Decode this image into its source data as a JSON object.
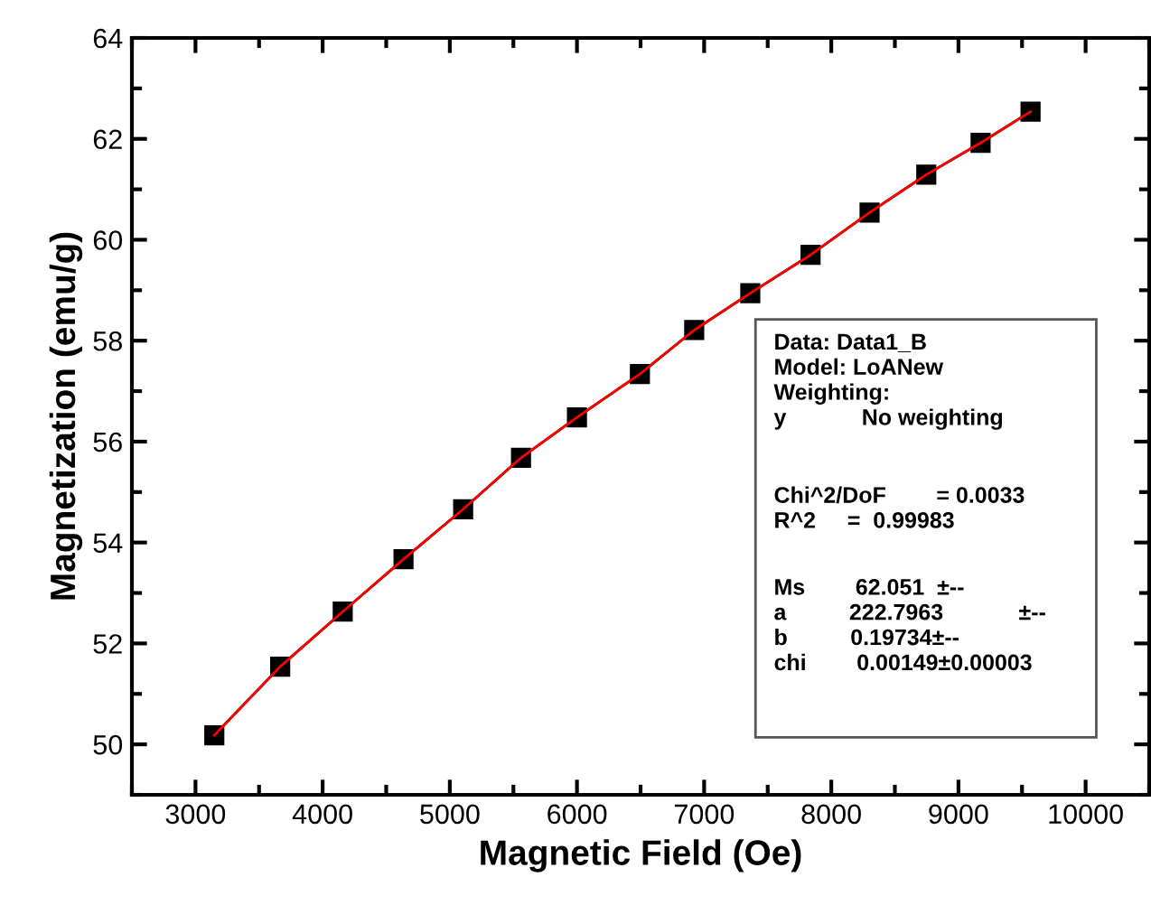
{
  "chart_data": {
    "type": "line",
    "xlabel": "Magnetic Field (Oe)",
    "ylabel": "Magnetization (emu/g)",
    "x": [
      3148,
      3666,
      4158,
      4636,
      5105,
      5560,
      6000,
      6495,
      6922,
      7363,
      7837,
      8301,
      8747,
      9174,
      9567
    ],
    "series": [
      {
        "color": "#000000",
        "marker": "square",
        "values": [
          50.18,
          51.54,
          52.63,
          53.67,
          54.66,
          55.68,
          56.48,
          57.34,
          58.21,
          58.94,
          59.7,
          60.54,
          61.29,
          61.92,
          62.54
        ]
      },
      {
        "color": "#ff0000",
        "marker": "none",
        "values": [
          50.18,
          51.54,
          52.63,
          53.67,
          54.66,
          55.68,
          56.48,
          57.34,
          58.21,
          58.94,
          59.7,
          60.54,
          61.29,
          61.92,
          62.54
        ]
      }
    ],
    "xlim": [
      2500,
      10500
    ],
    "xticks": [
      3000,
      4000,
      5000,
      6000,
      7000,
      8000,
      9000,
      10000
    ],
    "ylim": [
      49,
      64
    ],
    "yticks": [
      50,
      52,
      54,
      56,
      58,
      60,
      62,
      64
    ],
    "grid": false,
    "legend": false,
    "annotations": [
      "Data: Data1_B\nModel: LoANew\nWeighting:\ny            No weighting",
      "Chi^2/DoF        = 0.0033\nR^2     =  0.99983",
      "Ms        62.051  ±--\na          222.7963            ±--\nb          0.19734±--\nchi        0.00149±0.00003"
    ]
  }
}
